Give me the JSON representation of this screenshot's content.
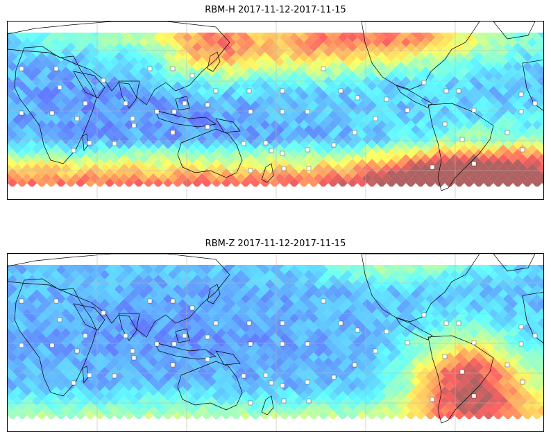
{
  "panels": [
    {
      "id": "top",
      "title": "RBM-H 2017-11-12-2017-11-15"
    },
    {
      "id": "bottom",
      "title": "RBM-Z 2017-11-12-2017-11-15"
    }
  ],
  "colormap": "jet (semi-transparent)",
  "projection": "equirectangular, centered on Pacific",
  "gridlines": true
}
